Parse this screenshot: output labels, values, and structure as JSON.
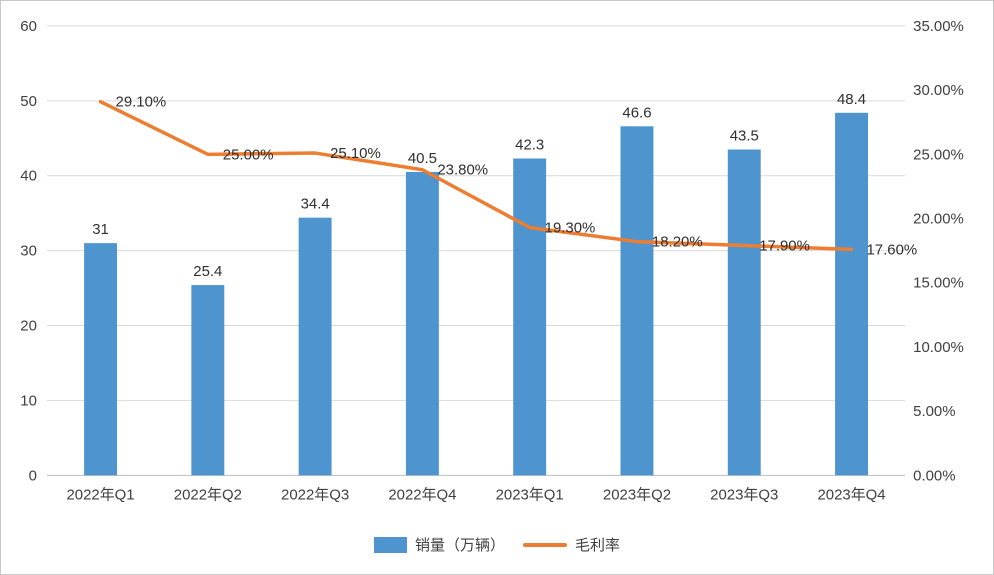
{
  "chart_data": {
    "type": "bar+line",
    "categories": [
      "2022年Q1",
      "2022年Q2",
      "2022年Q3",
      "2022年Q4",
      "2023年Q1",
      "2023年Q2",
      "2023年Q3",
      "2023年Q4"
    ],
    "series": [
      {
        "name": "销量（万辆）",
        "type": "bar",
        "axis": "left",
        "values": [
          31,
          25.4,
          34.4,
          40.5,
          42.3,
          46.6,
          43.5,
          48.4
        ],
        "labels": [
          "31",
          "25.4",
          "34.4",
          "40.5",
          "42.3",
          "46.6",
          "43.5",
          "48.4"
        ],
        "color": "#4E95D0"
      },
      {
        "name": "毛利率",
        "type": "line",
        "axis": "right",
        "values": [
          29.1,
          25.0,
          25.1,
          23.8,
          19.3,
          18.2,
          17.9,
          17.6
        ],
        "labels": [
          "29.10%",
          "25.00%",
          "25.10%",
          "23.80%",
          "19.30%",
          "18.20%",
          "17.90%",
          "17.60%"
        ],
        "color": "#ED7D31"
      }
    ],
    "left_axis": {
      "min": 0,
      "max": 60,
      "step": 10,
      "tick_labels": [
        "0",
        "10",
        "20",
        "30",
        "40",
        "50",
        "60"
      ]
    },
    "right_axis": {
      "min": 0,
      "max": 35,
      "step": 5,
      "tick_labels": [
        "0.00%",
        "5.00%",
        "10.00%",
        "15.00%",
        "20.00%",
        "25.00%",
        "30.00%",
        "35.00%"
      ]
    },
    "grid": true,
    "legend_position": "bottom",
    "colors": {
      "gridline": "#d9d9d9",
      "axis_line": "#bfbfbf",
      "tick_text": "#404040",
      "label_text": "#2f2f2f",
      "background": "#ffffff"
    }
  }
}
